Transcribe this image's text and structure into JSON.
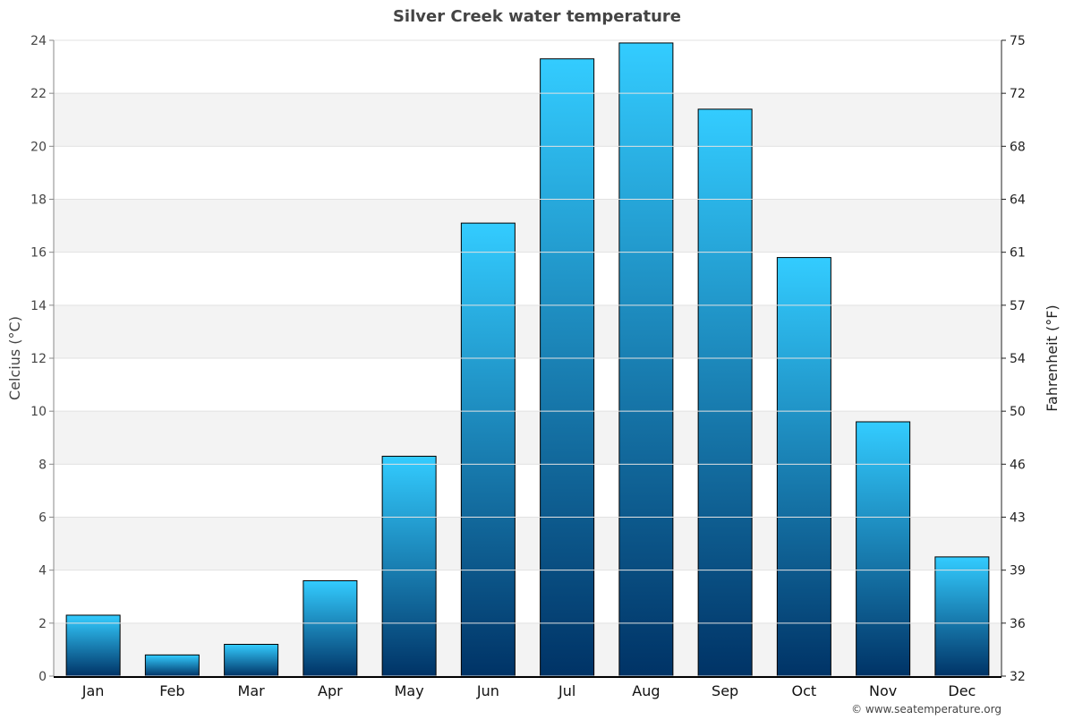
{
  "chart_data": {
    "type": "bar",
    "title": "Silver Creek water temperature",
    "ylabel": "Celcius (°C)",
    "y2label": "Fahrenheit (°F)",
    "categories": [
      "Jan",
      "Feb",
      "Mar",
      "Apr",
      "May",
      "Jun",
      "Jul",
      "Aug",
      "Sep",
      "Oct",
      "Nov",
      "Dec"
    ],
    "values": [
      2.3,
      0.8,
      1.2,
      3.6,
      8.3,
      17.1,
      23.3,
      23.9,
      21.4,
      15.8,
      9.6,
      4.5
    ],
    "ylim": [
      0,
      24
    ],
    "yticks": [
      0,
      2,
      4,
      6,
      8,
      10,
      12,
      14,
      16,
      18,
      20,
      22,
      24
    ],
    "y2ticks": [
      "32",
      "36",
      "39",
      "43",
      "46",
      "50",
      "54",
      "57",
      "61",
      "64",
      "68",
      "72",
      "75"
    ],
    "grid": "horizontal alternating bands",
    "colors": {
      "bar_top": "#33ccff",
      "bar_bottom": "#003366",
      "band": "#f3f3f3"
    }
  },
  "footer": {
    "credit": "© www.seatemperature.org"
  }
}
